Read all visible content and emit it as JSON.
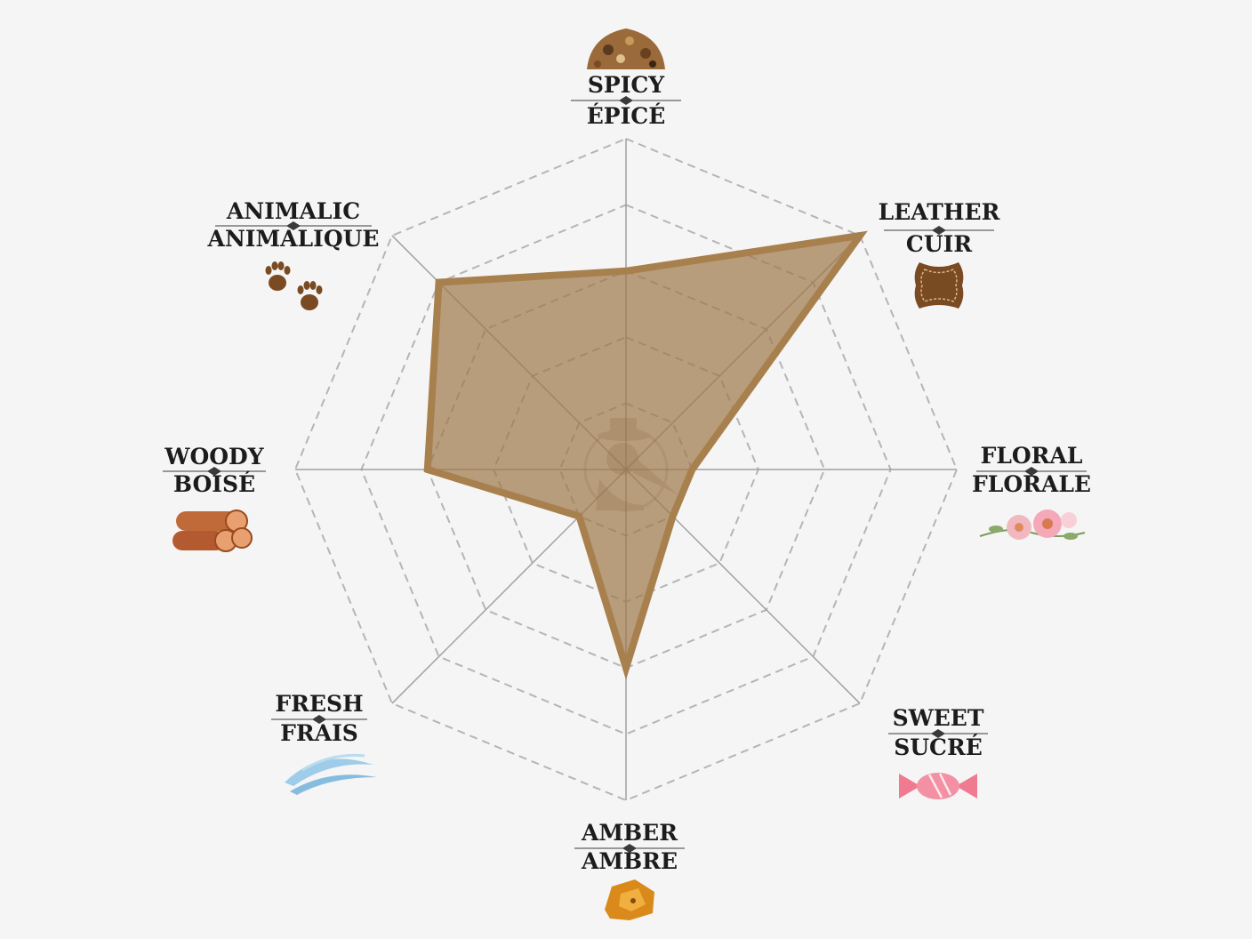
{
  "chart_data": {
    "type": "radar",
    "axes": [
      {
        "key": "spicy",
        "label_en": "SPICY",
        "label_fr": "ÉPICÉ",
        "icon": "spice-heap-icon"
      },
      {
        "key": "leather",
        "label_en": "LEATHER",
        "label_fr": "CUIR",
        "icon": "leather-hide-icon"
      },
      {
        "key": "floral",
        "label_en": "FLORAL",
        "label_fr": "FLORALE",
        "icon": "flowers-icon"
      },
      {
        "key": "sweet",
        "label_en": "SWEET",
        "label_fr": "SUCRÉ",
        "icon": "candy-icon"
      },
      {
        "key": "amber",
        "label_en": "AMBER",
        "label_fr": "AMBRE",
        "icon": "amber-stone-icon"
      },
      {
        "key": "fresh",
        "label_en": "FRESH",
        "label_fr": "FRAIS",
        "icon": "wind-gust-icon"
      },
      {
        "key": "woody",
        "label_en": "WOODY",
        "label_fr": "BOISÉ",
        "icon": "wood-logs-icon"
      },
      {
        "key": "animalic",
        "label_en": "ANIMALIC",
        "label_fr": "ANIMALIQUE",
        "icon": "paw-prints-icon"
      }
    ],
    "values": [
      3,
      5,
      1,
      1,
      3,
      1,
      3,
      4
    ],
    "scale_max": 5,
    "grid_levels": 5,
    "grid": true,
    "colors": {
      "fill": "#9c7848",
      "stroke": "#a8804e",
      "grid": "#b5b5b5",
      "spoke": "#a0a0a0",
      "background": "#f5f5f5"
    }
  },
  "watermark": {
    "icon": "plague-doctor-logo-icon"
  }
}
